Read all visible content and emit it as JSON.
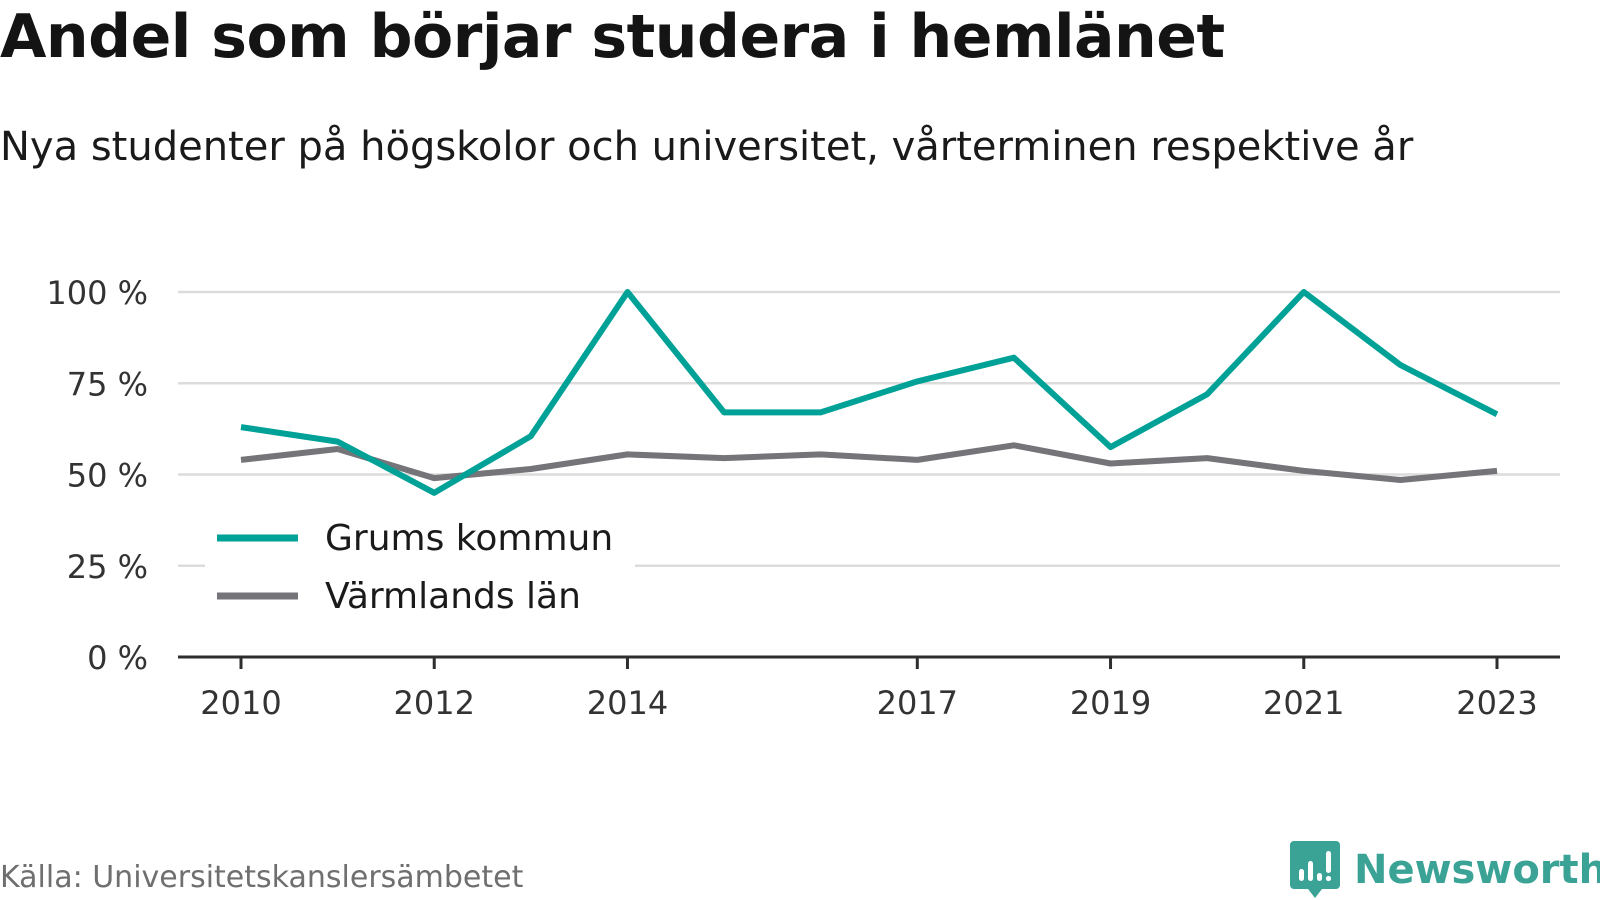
{
  "title": "Andel som börjar studera i hemlänet",
  "subtitle": "Nya studenter på högskolor och universitet, vårterminen respektive år",
  "source": "Källa: Universitetskanslersämbetet",
  "brand": {
    "name": "Newsworthy",
    "logo_icon": "newsworthy-logo-icon"
  },
  "colors": {
    "series_1": "#00a196",
    "series_2": "#747479",
    "brand": "#3aa396"
  },
  "chart_data": {
    "type": "line",
    "x": [
      2010,
      2011,
      2012,
      2013,
      2014,
      2015,
      2016,
      2017,
      2018,
      2019,
      2020,
      2021,
      2022,
      2023
    ],
    "x_ticks": [
      "2010",
      "2012",
      "2014",
      "2017",
      "2019",
      "2021",
      "2023"
    ],
    "y_ticks": [
      0,
      25,
      50,
      75,
      100
    ],
    "y_tick_labels": [
      "0 %",
      "25 %",
      "50 %",
      "75 %",
      "100 %"
    ],
    "ylim": [
      0,
      100
    ],
    "grid": true,
    "legend_position": "bottom-left",
    "series": [
      {
        "name": "Grums kommun",
        "color": "#00a196",
        "values": [
          63,
          59,
          45,
          60.5,
          100,
          67,
          67,
          75.5,
          82,
          57.5,
          72,
          100,
          80,
          66.5
        ]
      },
      {
        "name": "Värmlands län",
        "color": "#747479",
        "values": [
          54,
          57,
          49,
          51.5,
          55.5,
          54.5,
          55.5,
          54,
          58,
          53,
          54.5,
          51,
          48.5,
          51
        ]
      }
    ]
  }
}
